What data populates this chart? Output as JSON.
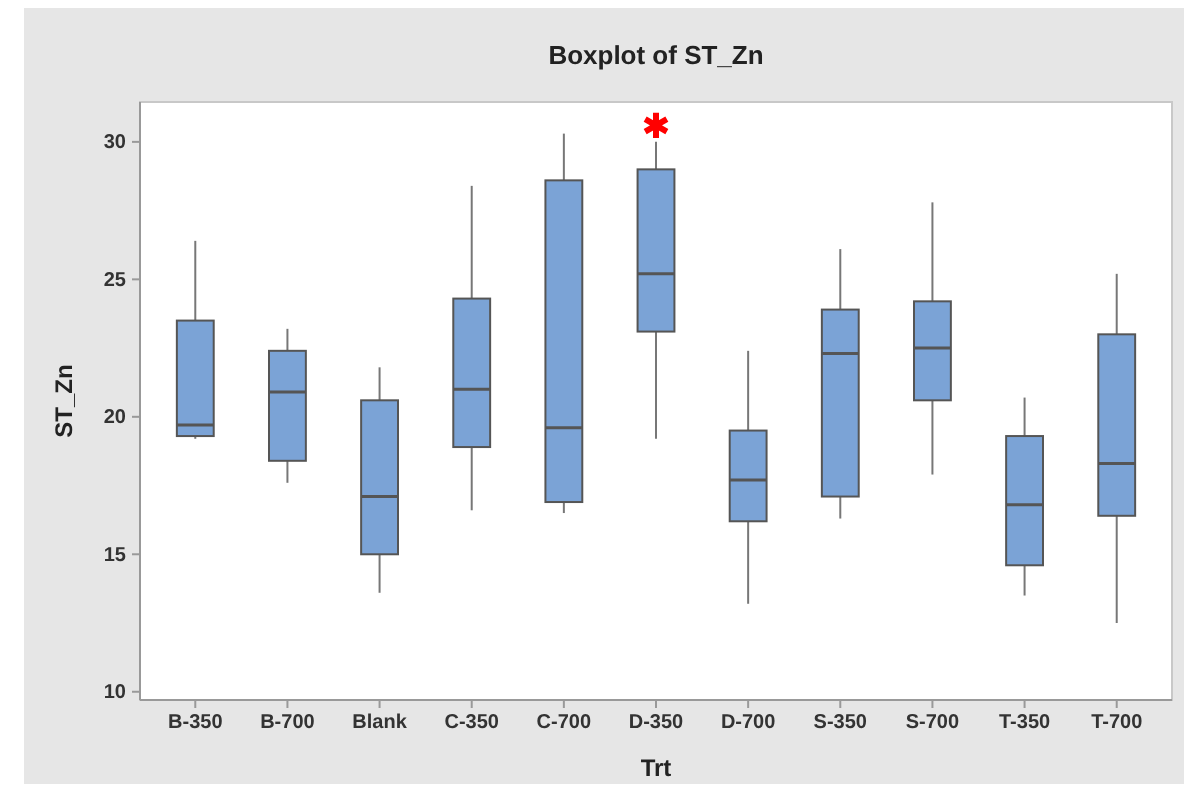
{
  "chart_data": {
    "type": "box",
    "title": "Boxplot of ST_Zn",
    "xlabel": "Trt",
    "ylabel": "ST_Zn",
    "categories": [
      "B-350",
      "B-700",
      "Blank",
      "C-350",
      "C-700",
      "D-350",
      "D-700",
      "S-350",
      "S-700",
      "T-350",
      "T-700"
    ],
    "color": "#7ba3d6",
    "boxes": [
      {
        "low": 19.2,
        "q1": 19.3,
        "median": 19.7,
        "q3": 23.5,
        "high": 26.4
      },
      {
        "low": 17.6,
        "q1": 18.4,
        "median": 20.9,
        "q3": 22.4,
        "high": 23.2
      },
      {
        "low": 13.6,
        "q1": 15.0,
        "median": 17.1,
        "q3": 20.6,
        "high": 21.8
      },
      {
        "low": 16.6,
        "q1": 18.9,
        "median": 21.0,
        "q3": 24.3,
        "high": 28.4
      },
      {
        "low": 16.5,
        "q1": 16.9,
        "median": 19.6,
        "q3": 28.6,
        "high": 30.3
      },
      {
        "low": 19.2,
        "q1": 23.1,
        "median": 25.2,
        "q3": 29.0,
        "high": 30.0,
        "outliers": [
          30.6
        ]
      },
      {
        "low": 13.2,
        "q1": 16.2,
        "median": 17.7,
        "q3": 19.5,
        "high": 22.4
      },
      {
        "low": 16.3,
        "q1": 17.1,
        "median": 22.3,
        "q3": 23.9,
        "high": 26.1
      },
      {
        "low": 17.9,
        "q1": 20.6,
        "median": 22.5,
        "q3": 24.2,
        "high": 27.8
      },
      {
        "low": 13.5,
        "q1": 14.6,
        "median": 16.8,
        "q3": 19.3,
        "high": 20.7
      },
      {
        "low": 12.5,
        "q1": 16.4,
        "median": 18.3,
        "q3": 23.0,
        "high": 25.2
      }
    ],
    "ylim": [
      9.7,
      31.45
    ],
    "yticks": [
      10,
      15,
      20,
      25,
      30
    ],
    "grid": false
  }
}
